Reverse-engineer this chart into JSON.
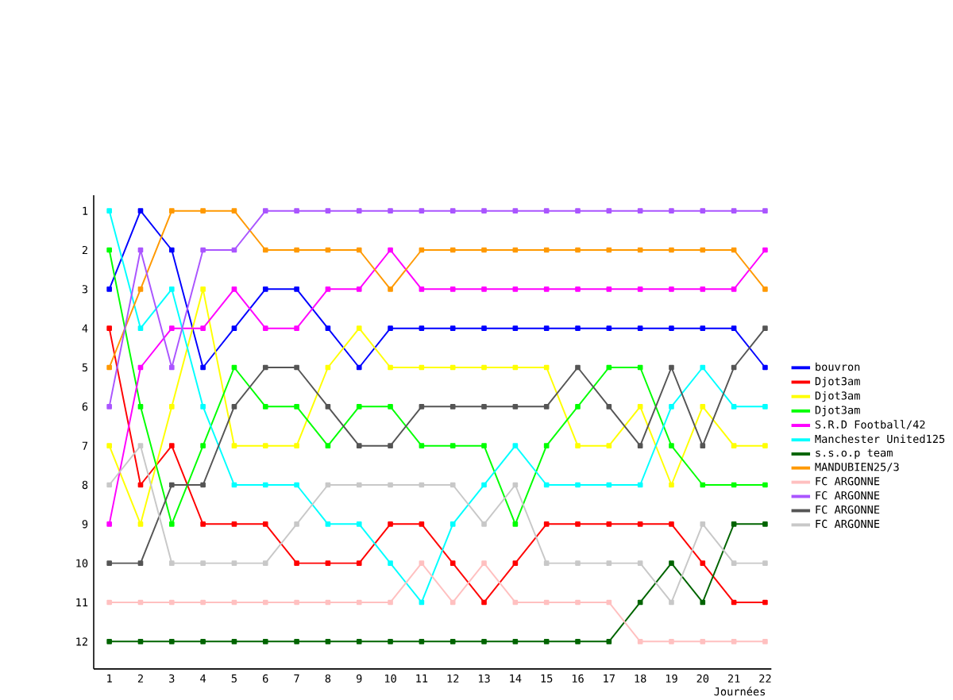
{
  "chart_data": {
    "type": "line",
    "xlabel": "Journées",
    "x": [
      1,
      2,
      3,
      4,
      5,
      6,
      7,
      8,
      9,
      10,
      11,
      12,
      13,
      14,
      15,
      16,
      17,
      18,
      19,
      20,
      21,
      22
    ],
    "xlim": [
      0.5,
      22.2
    ],
    "xticks": [
      1,
      2,
      3,
      4,
      5,
      6,
      7,
      8,
      9,
      10,
      11,
      12,
      13,
      14,
      15,
      16,
      17,
      18,
      19,
      20,
      21,
      22
    ],
    "ylim": [
      12.7,
      0.6
    ],
    "yticks": [
      1,
      2,
      3,
      4,
      5,
      6,
      7,
      8,
      9,
      10,
      11,
      12
    ],
    "grid": false,
    "legend": "right",
    "marker": "square",
    "line_style": "solid",
    "series": [
      {
        "name": "bouvron",
        "color": "#0000ff",
        "values": [
          3,
          1,
          2,
          5,
          4,
          3,
          3,
          4,
          5,
          4,
          4,
          4,
          4,
          4,
          4,
          4,
          4,
          4,
          4,
          4,
          4,
          5
        ]
      },
      {
        "name": "Djot3am",
        "color": "#ff0000",
        "values": [
          4,
          8,
          7,
          9,
          9,
          9,
          10,
          10,
          10,
          9,
          9,
          10,
          11,
          10,
          9,
          9,
          9,
          9,
          9,
          10,
          11,
          11
        ]
      },
      {
        "name": "Djot3am",
        "color": "#ffff00",
        "values": [
          7,
          9,
          6,
          3,
          7,
          7,
          7,
          5,
          4,
          5,
          5,
          5,
          5,
          5,
          5,
          7,
          7,
          6,
          8,
          6,
          7,
          7
        ]
      },
      {
        "name": "Djot3am",
        "color": "#00ff00",
        "values": [
          2,
          6,
          9,
          7,
          5,
          6,
          6,
          7,
          6,
          6,
          7,
          7,
          7,
          9,
          7,
          6,
          5,
          5,
          7,
          8,
          8,
          8
        ]
      },
      {
        "name": "S.R.D Football/42",
        "color": "#ff00ff",
        "values": [
          9,
          5,
          4,
          4,
          3,
          4,
          4,
          3,
          3,
          2,
          3,
          3,
          3,
          3,
          3,
          3,
          3,
          3,
          3,
          3,
          3,
          2
        ]
      },
      {
        "name": "Manchester United125",
        "color": "#00ffff",
        "values": [
          1,
          4,
          3,
          6,
          8,
          8,
          8,
          9,
          9,
          10,
          11,
          9,
          8,
          7,
          8,
          8,
          8,
          8,
          6,
          5,
          6,
          6
        ]
      },
      {
        "name": "s.s.o.p team",
        "color": "#006400",
        "values": [
          12,
          12,
          12,
          12,
          12,
          12,
          12,
          12,
          12,
          12,
          12,
          12,
          12,
          12,
          12,
          12,
          12,
          11,
          10,
          11,
          9,
          9
        ]
      },
      {
        "name": "MANDUBIEN25/3",
        "color": "#ff9900",
        "values": [
          5,
          3,
          1,
          1,
          1,
          2,
          2,
          2,
          2,
          3,
          2,
          2,
          2,
          2,
          2,
          2,
          2,
          2,
          2,
          2,
          2,
          3
        ]
      },
      {
        "name": "FC ARGONNE",
        "color": "#ffc0c0",
        "values": [
          11,
          11,
          11,
          11,
          11,
          11,
          11,
          11,
          11,
          11,
          10,
          11,
          10,
          11,
          11,
          11,
          11,
          12,
          12,
          12,
          12,
          12
        ]
      },
      {
        "name": "FC ARGONNE",
        "color": "#aa55ff",
        "values": [
          6,
          2,
          5,
          2,
          2,
          1,
          1,
          1,
          1,
          1,
          1,
          1,
          1,
          1,
          1,
          1,
          1,
          1,
          1,
          1,
          1,
          1
        ]
      },
      {
        "name": "FC ARGONNE",
        "color": "#555555",
        "values": [
          10,
          10,
          8,
          8,
          6,
          5,
          5,
          6,
          7,
          7,
          6,
          6,
          6,
          6,
          6,
          5,
          6,
          7,
          5,
          7,
          5,
          4
        ]
      },
      {
        "name": "FC ARGONNE",
        "color": "#c8c8c8",
        "values": [
          8,
          7,
          10,
          10,
          10,
          10,
          9,
          8,
          8,
          8,
          8,
          8,
          9,
          8,
          10,
          10,
          10,
          10,
          11,
          9,
          10,
          10
        ]
      }
    ]
  }
}
